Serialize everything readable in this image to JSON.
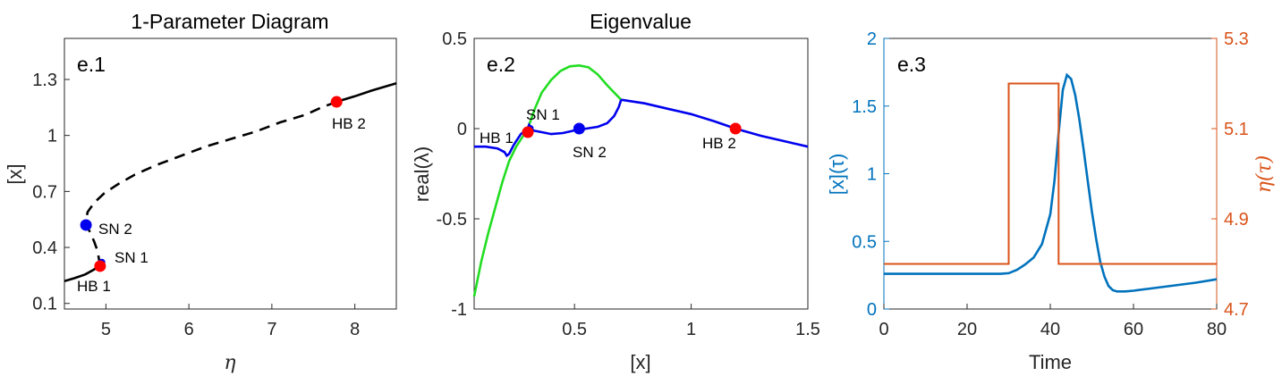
{
  "colors": {
    "black": "#000000",
    "blue": "#0000ee",
    "red": "#ff0000",
    "green": "#22dd22",
    "matlab_blue": "#0072BD",
    "matlab_orange": "#D95319",
    "axis": "#262626"
  },
  "chart_data": [
    {
      "type": "line",
      "title": "1-Parameter Diagram",
      "panel_label": "e.1",
      "xlabel": "η",
      "ylabel": "[x]",
      "xlim": [
        4.5,
        8.5
      ],
      "ylim": [
        0.07,
        1.52
      ],
      "xticks": [
        5,
        6,
        7,
        8
      ],
      "xtick_labels": [
        "5",
        "6",
        "7",
        "8"
      ],
      "yticks": [
        0.1,
        0.4,
        0.7,
        1.0,
        1.3
      ],
      "ytick_labels": [
        "0.1",
        "0.4",
        "0.7",
        "1",
        "1.3"
      ],
      "series": [
        {
          "style": "solid",
          "color": "#000000",
          "x": [
            4.5,
            4.62,
            4.75,
            4.85,
            4.9,
            4.93
          ],
          "y": [
            0.22,
            0.235,
            0.255,
            0.28,
            0.295,
            0.3
          ]
        },
        {
          "style": "dashed",
          "color": "#000000",
          "x": [
            4.93,
            4.9,
            4.86,
            4.81,
            4.77,
            4.76,
            4.78,
            4.86,
            4.98,
            5.15,
            5.35,
            5.6,
            5.9,
            6.2,
            6.5,
            6.8,
            7.1,
            7.4,
            7.6,
            7.78
          ],
          "y": [
            0.3,
            0.38,
            0.43,
            0.48,
            0.515,
            0.55,
            0.59,
            0.64,
            0.69,
            0.74,
            0.79,
            0.84,
            0.89,
            0.94,
            0.98,
            1.02,
            1.07,
            1.11,
            1.15,
            1.18
          ]
        },
        {
          "style": "solid",
          "color": "#000000",
          "x": [
            7.78,
            8.0,
            8.2,
            8.5
          ],
          "y": [
            1.18,
            1.21,
            1.24,
            1.28
          ]
        }
      ],
      "points": [
        {
          "label": "HB 2",
          "x": 7.78,
          "y": 1.18,
          "color": "#ff0000"
        },
        {
          "label": "SN 2",
          "x": 4.76,
          "y": 0.52,
          "color": "#0000ee"
        },
        {
          "label": "SN 1",
          "x": 4.95,
          "y": 0.32,
          "color": "#0000ee"
        },
        {
          "label": "HB 1",
          "x": 4.93,
          "y": 0.3,
          "color": "#ff0000"
        }
      ]
    },
    {
      "type": "line",
      "title": "Eigenvalue",
      "panel_label": "e.2",
      "xlabel": "[x]",
      "ylabel": "real(λ)",
      "xlim": [
        0.07,
        1.5
      ],
      "ylim": [
        -1,
        0.5
      ],
      "xticks": [
        0.5,
        1.0,
        1.5
      ],
      "xtick_labels": [
        "0.5",
        "1",
        "1.5"
      ],
      "yticks": [
        -1,
        -0.5,
        0,
        0.5
      ],
      "ytick_labels": [
        "-1",
        "-0.5",
        "0",
        "0.5"
      ],
      "series": [
        {
          "color": "#22dd22",
          "x": [
            0.07,
            0.1,
            0.13,
            0.16,
            0.19,
            0.22,
            0.25,
            0.28,
            0.3
          ],
          "y": [
            -0.93,
            -0.74,
            -0.58,
            -0.44,
            -0.3,
            -0.18,
            -0.1,
            -0.04,
            0.0
          ]
        },
        {
          "color": "#22dd22",
          "x": [
            0.3,
            0.33,
            0.36,
            0.4,
            0.44,
            0.48,
            0.52,
            0.56,
            0.6,
            0.64,
            0.67,
            0.7
          ],
          "y": [
            0.0,
            0.11,
            0.2,
            0.27,
            0.32,
            0.345,
            0.35,
            0.34,
            0.3,
            0.24,
            0.2,
            0.16
          ]
        },
        {
          "color": "#0000ee",
          "x": [
            0.07,
            0.12,
            0.17,
            0.2,
            0.21,
            0.22,
            0.24,
            0.27,
            0.3
          ],
          "y": [
            -0.1,
            -0.1,
            -0.11,
            -0.13,
            -0.15,
            -0.14,
            -0.09,
            -0.03,
            0.0
          ]
        },
        {
          "color": "#0000ee",
          "x": [
            0.3,
            0.305,
            0.31,
            0.32
          ],
          "y": [
            0.0,
            0.02,
            0.01,
            -0.01
          ]
        },
        {
          "color": "#0000ee",
          "x": [
            0.32,
            0.36,
            0.4,
            0.45,
            0.5,
            0.55,
            0.6,
            0.64,
            0.67,
            0.69,
            0.7
          ],
          "y": [
            -0.01,
            -0.02,
            -0.03,
            -0.025,
            -0.01,
            0.0,
            0.01,
            0.03,
            0.07,
            0.12,
            0.16
          ]
        },
        {
          "color": "#0000ee",
          "x": [
            0.7,
            0.8,
            0.9,
            1.0,
            1.1,
            1.19,
            1.3,
            1.4,
            1.5
          ],
          "y": [
            0.16,
            0.14,
            0.11,
            0.08,
            0.04,
            0.0,
            -0.04,
            -0.07,
            -0.1
          ]
        }
      ],
      "points": [
        {
          "label": "SN 1",
          "x": 0.31,
          "y": 0.0,
          "color": "#0000ee",
          "size": "small"
        },
        {
          "label": "HB 1",
          "x": 0.3,
          "y": -0.02,
          "color": "#ff0000"
        },
        {
          "label": "SN 2",
          "x": 0.52,
          "y": 0.0,
          "color": "#0000ee"
        },
        {
          "label": "HB 2",
          "x": 1.19,
          "y": 0.0,
          "color": "#ff0000"
        }
      ]
    },
    {
      "type": "line",
      "panel_label": "e.3",
      "xlabel": "Time",
      "ylabel_left": "[x](τ)",
      "ylabel_right": "η(τ)",
      "xlim": [
        0,
        80
      ],
      "ylim_left": [
        0,
        2
      ],
      "ylim_right": [
        4.7,
        5.3
      ],
      "xticks": [
        0,
        20,
        40,
        60,
        80
      ],
      "xtick_labels": [
        "0",
        "20",
        "40",
        "60",
        "80"
      ],
      "yticks_left": [
        0,
        0.5,
        1,
        1.5,
        2
      ],
      "ytick_labels_left": [
        "0",
        "0.5",
        "1",
        "1.5",
        "2"
      ],
      "yticks_right": [
        4.7,
        4.9,
        5.1,
        5.3
      ],
      "ytick_labels_right": [
        "4.7",
        "4.9",
        "5.1",
        "5.3"
      ],
      "series": [
        {
          "name": "[x](τ)",
          "axis": "left",
          "color": "#0072BD",
          "x": [
            0,
            10,
            20,
            28,
            30,
            32,
            34,
            36,
            38,
            40,
            41,
            42,
            43,
            44,
            45,
            46,
            47,
            48,
            49,
            50,
            51,
            52,
            53,
            54,
            55,
            56,
            58,
            60,
            65,
            70,
            75,
            80
          ],
          "y": [
            0.26,
            0.26,
            0.26,
            0.26,
            0.265,
            0.29,
            0.33,
            0.38,
            0.48,
            0.7,
            0.95,
            1.3,
            1.62,
            1.73,
            1.7,
            1.58,
            1.4,
            1.18,
            0.95,
            0.72,
            0.52,
            0.35,
            0.24,
            0.17,
            0.14,
            0.13,
            0.13,
            0.135,
            0.155,
            0.175,
            0.195,
            0.22
          ]
        },
        {
          "name": "η(τ)",
          "axis": "right",
          "color": "#D95319",
          "x": [
            0,
            30,
            30,
            42,
            42,
            80
          ],
          "y": [
            4.8,
            4.8,
            5.2,
            5.2,
            4.8,
            4.8
          ]
        }
      ]
    }
  ]
}
